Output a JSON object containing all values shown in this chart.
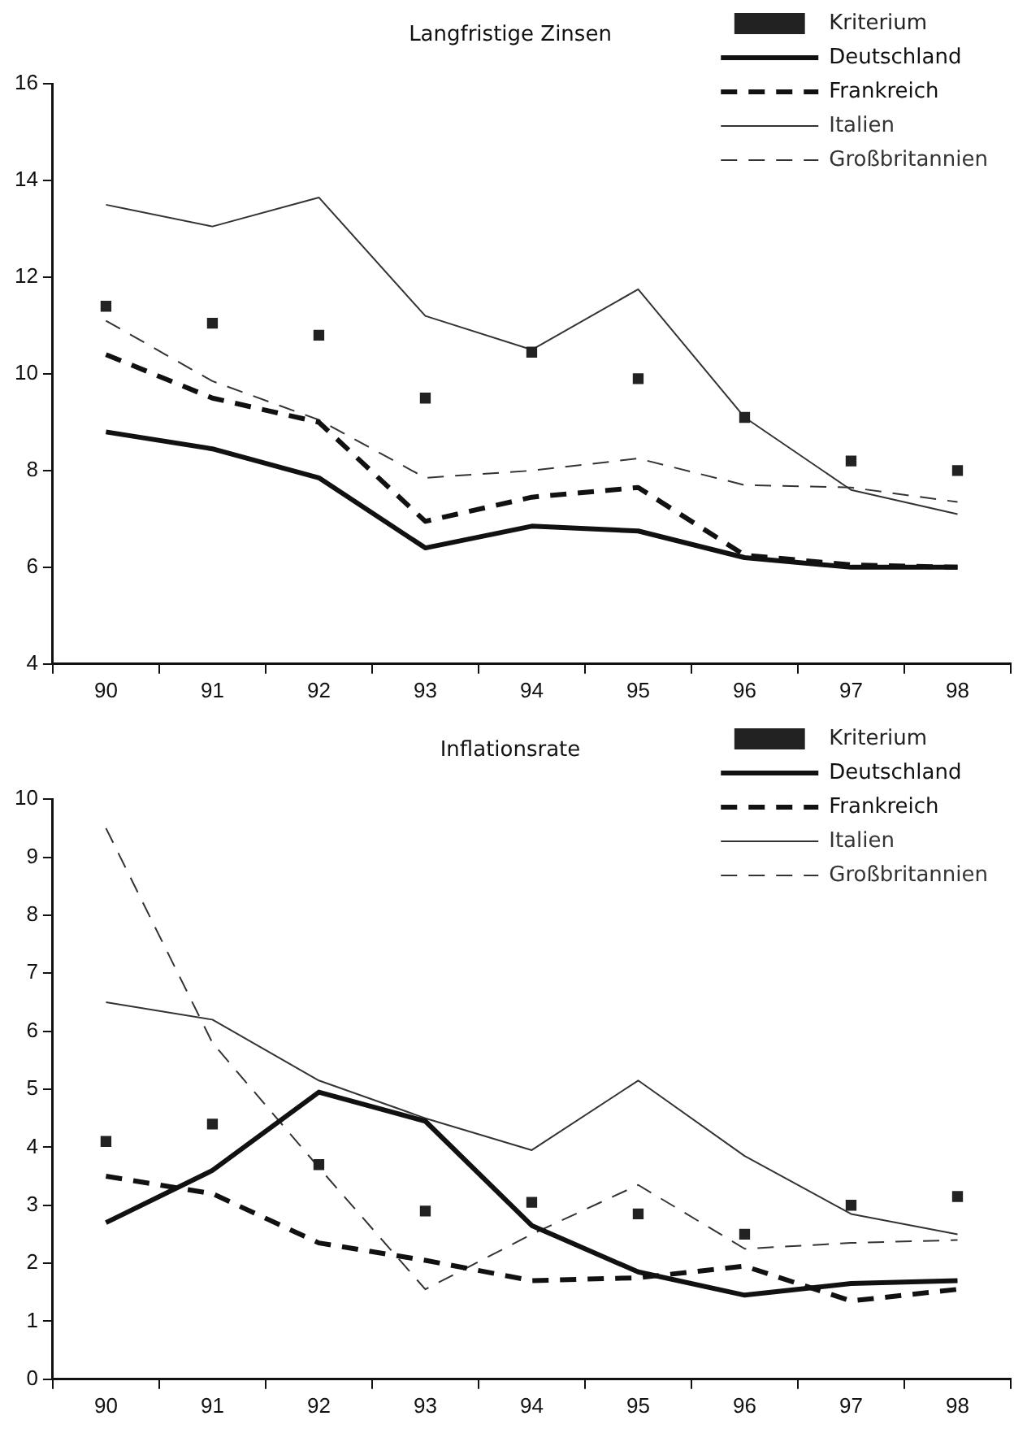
{
  "chart_data": [
    {
      "type": "line",
      "title": "Langfristige Zinsen",
      "categories": [
        "90",
        "91",
        "92",
        "93",
        "94",
        "95",
        "96",
        "97",
        "98"
      ],
      "ylim": [
        4,
        16
      ],
      "yticks": [
        4,
        6,
        8,
        10,
        12,
        14,
        16
      ],
      "grid": false,
      "legend": "top right",
      "series": [
        {
          "name": "Kriterium",
          "type": "scatter",
          "marker": "square",
          "color": "#222222",
          "values": [
            11.4,
            11.05,
            10.8,
            9.5,
            10.45,
            9.9,
            9.1,
            8.2,
            8.0
          ]
        },
        {
          "name": "Deutschland",
          "type": "line",
          "marker": "none",
          "line_style": "solid",
          "color": "#111111",
          "values": [
            8.8,
            8.45,
            7.85,
            6.4,
            6.85,
            6.75,
            6.2,
            6.0,
            6.0
          ]
        },
        {
          "name": "Frankreich",
          "type": "line",
          "marker": "none",
          "line_style": "dashed",
          "color": "#111111",
          "values": [
            10.4,
            9.5,
            9.0,
            6.95,
            7.45,
            7.65,
            6.25,
            6.05,
            6.0
          ]
        },
        {
          "name": "Italien",
          "type": "line",
          "marker": "none",
          "line_style": "solid",
          "color": "#333333",
          "values": [
            13.5,
            13.05,
            13.65,
            11.2,
            10.5,
            11.75,
            9.1,
            7.6,
            7.1
          ]
        },
        {
          "name": "Großbritannien",
          "type": "line",
          "marker": "none",
          "line_style": "dashed",
          "color": "#333333",
          "values": [
            11.1,
            9.85,
            9.05,
            7.85,
            8.0,
            8.25,
            7.7,
            7.65,
            7.35
          ]
        }
      ]
    },
    {
      "type": "line",
      "title": "Inflationsrate",
      "categories": [
        "90",
        "91",
        "92",
        "93",
        "94",
        "95",
        "96",
        "97",
        "98"
      ],
      "ylim": [
        0,
        10
      ],
      "yticks": [
        0,
        1,
        2,
        3,
        4,
        5,
        6,
        7,
        8,
        9,
        10
      ],
      "grid": false,
      "legend": "top right",
      "series": [
        {
          "name": "Kriterium",
          "type": "scatter",
          "marker": "square",
          "color": "#222222",
          "values": [
            4.1,
            4.4,
            3.7,
            2.9,
            3.05,
            2.85,
            2.5,
            3.0,
            3.15
          ]
        },
        {
          "name": "Deutschland",
          "type": "line",
          "marker": "none",
          "line_style": "solid",
          "color": "#111111",
          "values": [
            2.7,
            3.6,
            4.95,
            4.45,
            2.65,
            1.85,
            1.45,
            1.65,
            1.7
          ]
        },
        {
          "name": "Frankreich",
          "type": "line",
          "marker": "none",
          "line_style": "dashed",
          "color": "#111111",
          "values": [
            3.5,
            3.2,
            2.35,
            2.05,
            1.7,
            1.75,
            1.95,
            1.35,
            1.55
          ]
        },
        {
          "name": "Italien",
          "type": "line",
          "marker": "none",
          "line_style": "solid",
          "color": "#333333",
          "values": [
            6.5,
            6.2,
            5.15,
            4.5,
            3.95,
            5.15,
            3.85,
            2.85,
            2.5
          ]
        },
        {
          "name": "Großbritannien",
          "type": "line",
          "marker": "none",
          "line_style": "dashed",
          "color": "#333333",
          "values": [
            9.5,
            5.8,
            3.65,
            1.55,
            2.5,
            3.35,
            2.25,
            2.35,
            2.4
          ]
        }
      ]
    }
  ]
}
